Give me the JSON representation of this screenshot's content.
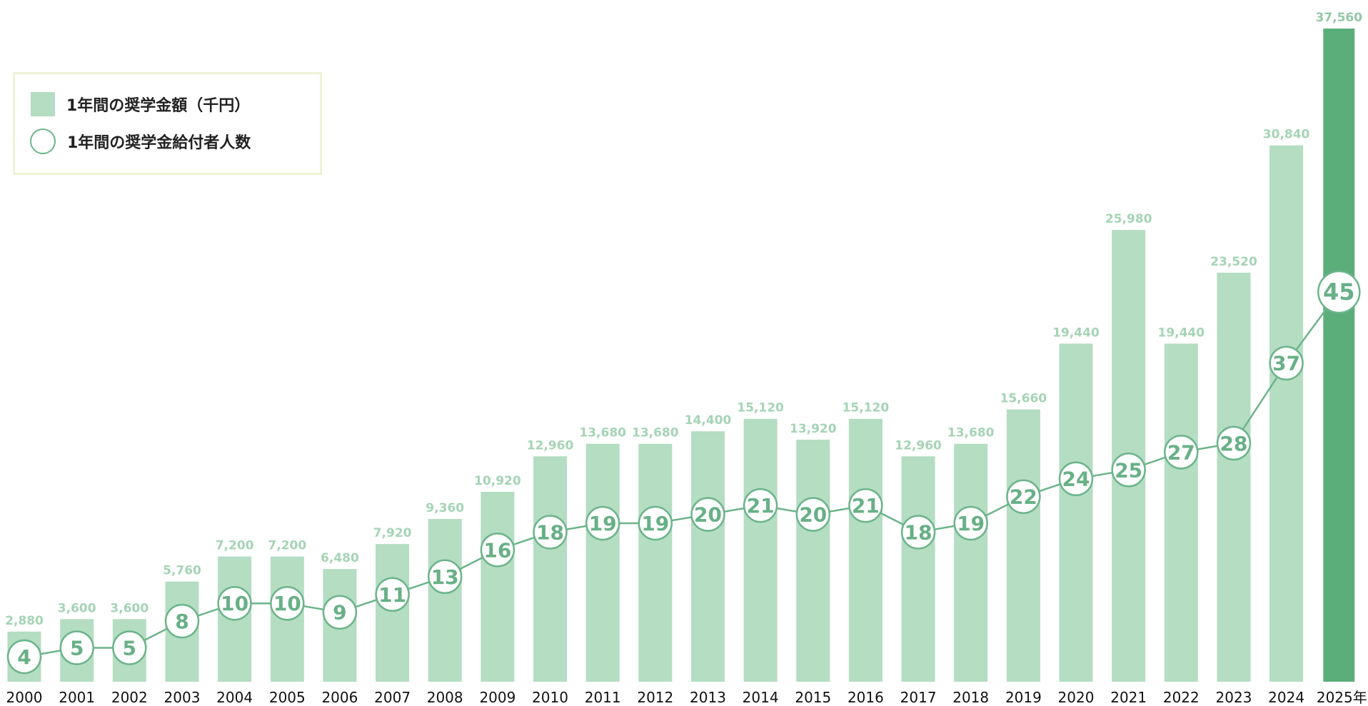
{
  "legend": {
    "amount_label": "1年間の奨学金額（千円）",
    "count_label": "1年間の奨学金給付者人数"
  },
  "colors": {
    "bar": "#b4ddc2",
    "bar_highlight": "#5bae7a",
    "line": "#6cb48a"
  },
  "chart_data": {
    "type": "bar",
    "categories": [
      "2000",
      "2001",
      "2002",
      "2003",
      "2004",
      "2005",
      "2006",
      "2007",
      "2008",
      "2009",
      "2010",
      "2011",
      "2012",
      "2013",
      "2014",
      "2015",
      "2016",
      "2017",
      "2018",
      "2019",
      "2020",
      "2021",
      "2022",
      "2023",
      "2024",
      "2025年"
    ],
    "series": [
      {
        "name": "1年間の奨学金額（千円）",
        "type": "bar",
        "values": [
          2880,
          3600,
          3600,
          5760,
          7200,
          7200,
          6480,
          7920,
          9360,
          10920,
          12960,
          13680,
          13680,
          14400,
          15120,
          13920,
          15120,
          12960,
          13680,
          15660,
          19440,
          25980,
          19440,
          23520,
          30840,
          37560
        ],
        "labels": [
          "2,880",
          "3,600",
          "3,600",
          "5,760",
          "7,200",
          "7,200",
          "6,480",
          "7,920",
          "9,360",
          "10,920",
          "12,960",
          "13,680",
          "13,680",
          "14,400",
          "15,120",
          "13,920",
          "15,120",
          "12,960",
          "13,680",
          "15,660",
          "19,440",
          "25,980",
          "19,440",
          "23,520",
          "30,840",
          "37,560"
        ]
      },
      {
        "name": "1年間の奨学金給付者人数",
        "type": "line",
        "values": [
          4,
          5,
          5,
          8,
          10,
          10,
          9,
          11,
          13,
          16,
          18,
          19,
          19,
          20,
          21,
          20,
          21,
          18,
          19,
          22,
          24,
          25,
          27,
          28,
          37,
          45
        ]
      }
    ],
    "highlight_index": 25,
    "ylim": [
      0,
      37560
    ],
    "grid": false,
    "legend_position": "top-left"
  }
}
